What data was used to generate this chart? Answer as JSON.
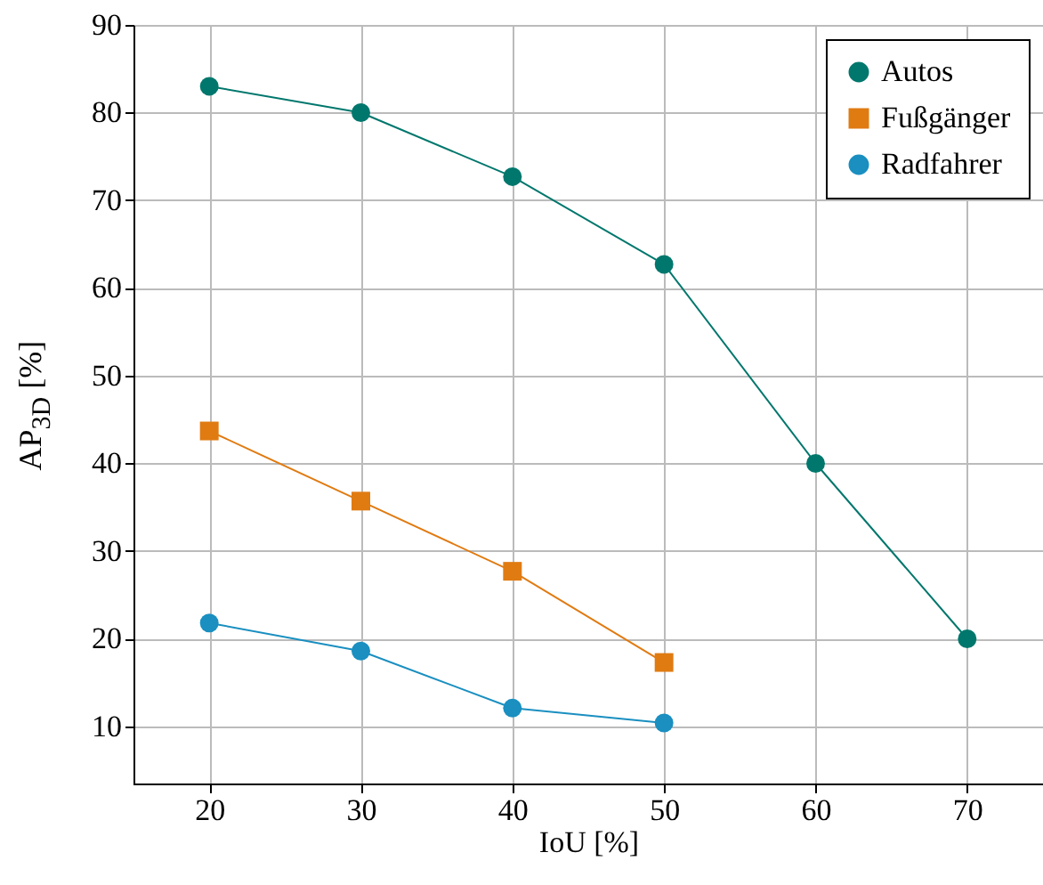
{
  "chart_data": {
    "type": "line",
    "xlabel": "IoU [%]",
    "ylabel": "AP$_{3D}$ [%]",
    "xlim": [
      15,
      75
    ],
    "xticks": [
      20,
      30,
      40,
      50,
      60,
      70
    ],
    "ylim": [
      3.5,
      90
    ],
    "yticks": [
      10,
      20,
      30,
      40,
      50,
      60,
      70,
      80,
      90
    ],
    "grid": true,
    "legend": "top right",
    "series": [
      {
        "name": "Autos",
        "color": "#00776d",
        "marker": "circle",
        "x": [
          20,
          30,
          40,
          50,
          60,
          70
        ],
        "values": [
          83,
          80,
          72.7,
          62.7,
          40,
          20
        ]
      },
      {
        "name": "Fußgänger",
        "color": "#e07b12",
        "marker": "square",
        "x": [
          20,
          30,
          40,
          50
        ],
        "values": [
          43.7,
          35.7,
          27.7,
          17.3
        ]
      },
      {
        "name": "Radfahrer",
        "color": "#1a8fc0",
        "marker": "circle",
        "x": [
          20,
          30,
          40,
          50
        ],
        "values": [
          21.8,
          18.6,
          12.1,
          10.4
        ]
      }
    ]
  }
}
